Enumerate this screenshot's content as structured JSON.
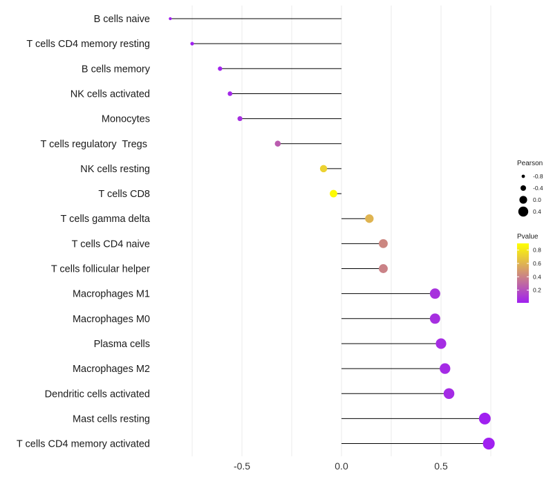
{
  "chart_data": {
    "type": "lollipop",
    "title": "",
    "xlabel": "",
    "ylabel": "",
    "xlim": [
      -0.95,
      0.8
    ],
    "xticks": [
      -0.5,
      0.0,
      0.5
    ],
    "xtick_labels": [
      "-0.5",
      "0.0",
      "0.5"
    ],
    "grid": true,
    "legend_position": "right",
    "points": [
      {
        "category": "B cells naive",
        "pearson": -0.86,
        "pvalue": 0.01
      },
      {
        "category": "T cells CD4 memory resting",
        "pearson": -0.75,
        "pvalue": 0.01
      },
      {
        "category": "B cells memory",
        "pearson": -0.61,
        "pvalue": 0.02
      },
      {
        "category": "NK cells activated",
        "pearson": -0.56,
        "pvalue": 0.04
      },
      {
        "category": "Monocytes",
        "pearson": -0.51,
        "pvalue": 0.07
      },
      {
        "category": "T cells regulatory  Tregs ",
        "pearson": -0.32,
        "pvalue": 0.25
      },
      {
        "category": "NK cells resting",
        "pearson": -0.09,
        "pvalue": 0.72
      },
      {
        "category": "T cells CD8",
        "pearson": -0.04,
        "pvalue": 0.88
      },
      {
        "category": "T cells gamma delta",
        "pearson": 0.14,
        "pvalue": 0.6
      },
      {
        "category": "T cells CD4 naive",
        "pearson": 0.21,
        "pvalue": 0.42
      },
      {
        "category": "T cells follicular helper",
        "pearson": 0.21,
        "pvalue": 0.4
      },
      {
        "category": "Macrophages M1",
        "pearson": 0.47,
        "pvalue": 0.08
      },
      {
        "category": "Macrophages M0",
        "pearson": 0.47,
        "pvalue": 0.07
      },
      {
        "category": "Plasma cells",
        "pearson": 0.5,
        "pvalue": 0.06
      },
      {
        "category": "Macrophages M2",
        "pearson": 0.52,
        "pvalue": 0.05
      },
      {
        "category": "Dendritic cells activated",
        "pearson": 0.54,
        "pvalue": 0.05
      },
      {
        "category": "Mast cells resting",
        "pearson": 0.72,
        "pvalue": 0.01
      },
      {
        "category": "T cells CD4 memory activated",
        "pearson": 0.74,
        "pvalue": 0.01
      }
    ],
    "size_legend": {
      "title": "Pearson",
      "values": [
        -0.8,
        -0.4,
        0.0,
        0.4
      ],
      "labels": [
        "-0.8",
        "-0.4",
        "0.0",
        "0.4"
      ]
    },
    "color_legend": {
      "title": "Pvalue",
      "range": [
        0.01,
        0.9
      ],
      "ticks": [
        0.8,
        0.6,
        0.4,
        0.2
      ],
      "tick_labels": [
        "0.8",
        "0.6",
        "0.4",
        "0.2"
      ],
      "low_color": "#a020f0",
      "high_color": "#ffff00"
    },
    "colors": {
      "stem": "#000000",
      "grid": "#ebebeb"
    }
  }
}
